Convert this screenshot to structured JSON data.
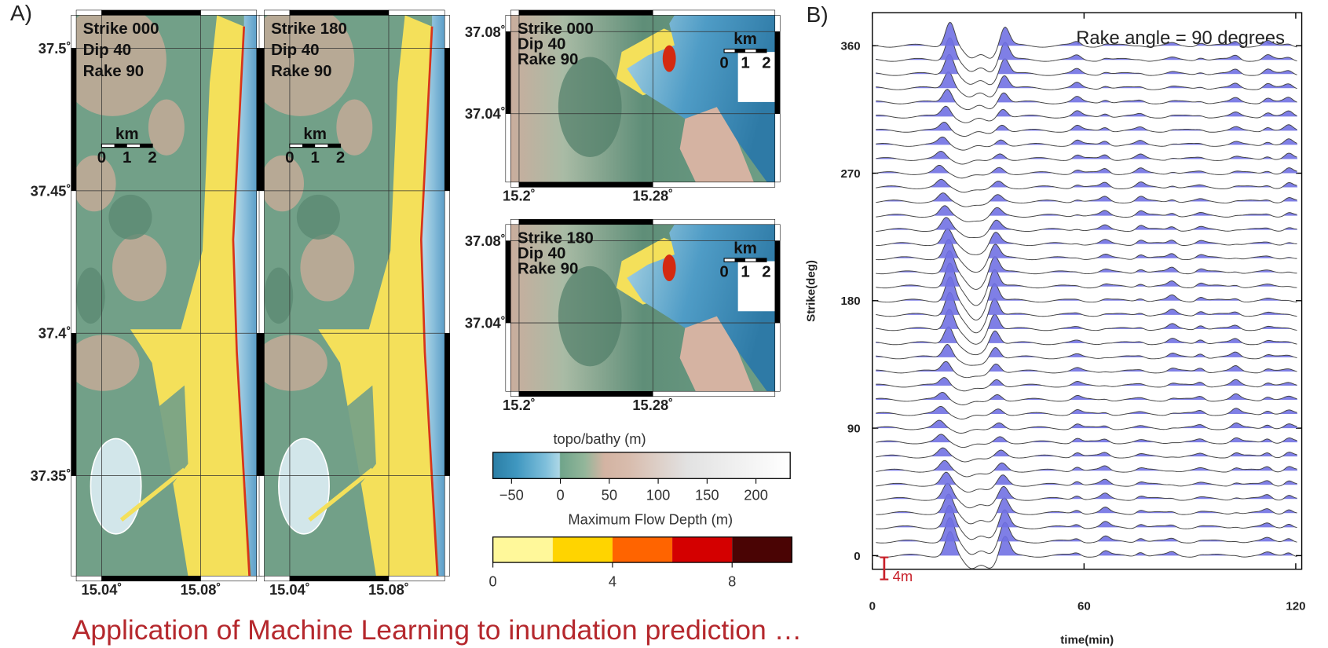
{
  "panel_a": {
    "label": "A)",
    "maps": [
      {
        "lines": [
          "Strike 000",
          "Dip 40",
          "Rake 90"
        ],
        "scale_title": "km",
        "scale_ticks": [
          "0",
          "1",
          "2"
        ],
        "latlim": [
          37.3148,
          37.5116
        ],
        "lonlim": [
          15.0297,
          15.1026
        ],
        "latticks": [
          {
            "value": 37.5,
            "label": "37.5˚"
          },
          {
            "value": 37.45,
            "label": "37.45˚"
          },
          {
            "value": 37.4,
            "label": "37.4˚"
          },
          {
            "value": 37.35,
            "label": "37.35˚"
          }
        ],
        "lonticks": [
          {
            "value": 15.04,
            "label": "15.04˚"
          },
          {
            "value": 15.08,
            "label": "15.08˚"
          }
        ]
      },
      {
        "lines": [
          "Strike 180",
          "Dip 40",
          "Rake 90"
        ],
        "scale_title": "km",
        "scale_ticks": [
          "0",
          "1",
          "2"
        ],
        "latlim": [
          37.3148,
          37.5116
        ],
        "lonlim": [
          15.0297,
          15.1026
        ],
        "latlines": [
          37.5,
          37.45,
          37.4,
          37.35
        ],
        "lonticks": [
          {
            "value": 15.04,
            "label": "15.04˚"
          },
          {
            "value": 15.08,
            "label": "15.08˚"
          }
        ]
      },
      {
        "lines": [
          "Strike 000",
          "Dip 40",
          "Rake 90"
        ],
        "scale_title": "km",
        "scale_ticks": [
          "0",
          "1",
          "2"
        ],
        "latlim": [
          37.0066,
          37.088
        ],
        "lonlim": [
          15.195,
          15.353
        ],
        "latticks": [
          {
            "value": 37.08,
            "label": "37.08˚"
          },
          {
            "value": 37.04,
            "label": "37.04˚"
          }
        ],
        "lonticks": [
          {
            "value": 15.2,
            "label": "15.2˚"
          },
          {
            "value": 15.28,
            "label": "15.28˚"
          }
        ]
      },
      {
        "lines": [
          "Strike 180",
          "Dip 40",
          "Rake 90"
        ],
        "scale_title": "km",
        "scale_ticks": [
          "0",
          "1",
          "2"
        ],
        "latlim": [
          37.0066,
          37.088
        ],
        "lonlim": [
          15.195,
          15.353
        ],
        "latticks": [
          {
            "value": 37.08,
            "label": "37.08˚"
          },
          {
            "value": 37.04,
            "label": "37.04˚"
          }
        ],
        "lonticks": [
          {
            "value": 15.2,
            "label": "15.2˚"
          },
          {
            "value": 15.28,
            "label": "15.28˚"
          }
        ]
      }
    ],
    "topo_colorbar": {
      "title": "topo/bathy (m)",
      "lim": [
        -69,
        235
      ],
      "ticks": [
        {
          "value": -50,
          "label": "−50"
        },
        0,
        50,
        100,
        150,
        200
      ],
      "stops": [
        {
          "value": -69,
          "color": "#2b7ea5"
        },
        {
          "value": -45,
          "color": "#3f97c0"
        },
        {
          "value": -15,
          "color": "#7fbfdb"
        },
        {
          "value": -1,
          "color": "#acd7e6"
        },
        {
          "value": 0,
          "color": "#6fa48a"
        },
        {
          "value": 25,
          "color": "#93b69a"
        },
        {
          "value": 45,
          "color": "#d3b3a2"
        },
        {
          "value": 70,
          "color": "#d8bcad"
        },
        {
          "value": 130,
          "color": "#e2e2e2"
        },
        {
          "value": 235,
          "color": "#ffffff"
        }
      ]
    },
    "flow_colorbar": {
      "title": "Maximum Flow Depth (m)",
      "bins": [
        0,
        2,
        4,
        6,
        8,
        10
      ],
      "colors": [
        "#fff89a",
        "#ffd400",
        "#ff6400",
        "#d40000",
        "#4a0404"
      ],
      "ticks": [
        0,
        4,
        8
      ]
    }
  },
  "panel_b": {
    "label": "B)",
    "annotation": "Rake angle = 90 degrees",
    "ylabel": "Strike(deg)",
    "xlabel": "time(min)",
    "xlim": [
      0,
      121.7
    ],
    "ylim": [
      -9.6,
      383.3
    ],
    "xticks": [
      0,
      60,
      120
    ],
    "yticks": [
      0,
      90,
      180,
      270,
      360
    ],
    "traces": [
      0,
      10,
      20,
      30,
      40,
      50,
      60,
      70,
      80,
      90,
      100,
      110,
      120,
      130,
      140,
      150,
      160,
      170,
      180,
      190,
      200,
      210,
      220,
      230,
      240,
      250,
      260,
      270,
      280,
      290,
      300,
      310,
      320,
      330,
      340,
      350,
      360
    ],
    "fill_color": "#7171e3",
    "scale_label": "4m",
    "scale_color": "#c8202a"
  },
  "caption": "Application of Machine Learning to inundation prediction …"
}
